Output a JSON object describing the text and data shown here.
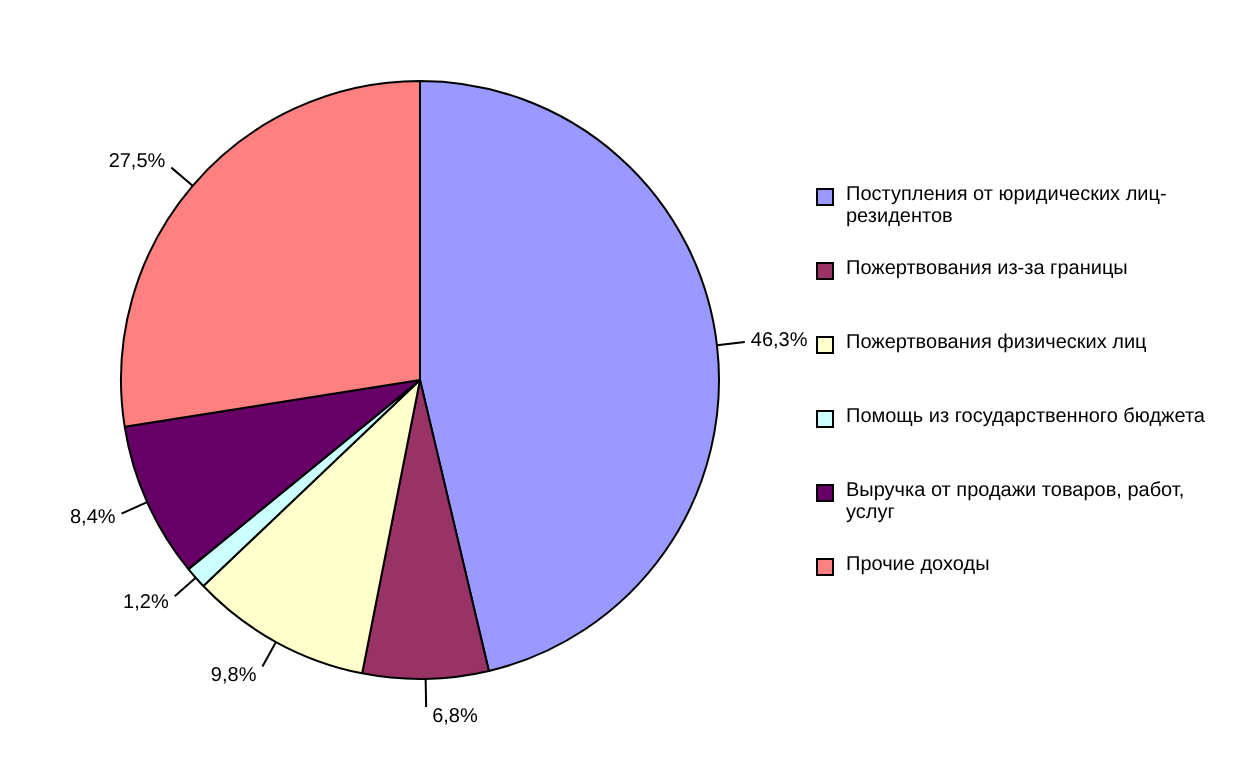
{
  "chart_data": {
    "type": "pie",
    "categories": [
      "Поступления от юридических лиц-резидентов",
      "Пожертвования из-за границы",
      "Пожертвования физических лиц",
      "Помощь из государственного бюджета",
      "Выручка от продажи товаров, работ, услуг",
      "Прочие доходы"
    ],
    "values": [
      46.3,
      6.8,
      9.8,
      1.2,
      8.4,
      27.5
    ],
    "colors": [
      "#9999ff",
      "#993366",
      "#ffffcc",
      "#ccffff",
      "#660066",
      "#ff8080"
    ],
    "value_labels": [
      "46,3%",
      "6,8%",
      "9,8%",
      "1,2%",
      "8,4%",
      "27,5%"
    ],
    "legend": "right"
  }
}
